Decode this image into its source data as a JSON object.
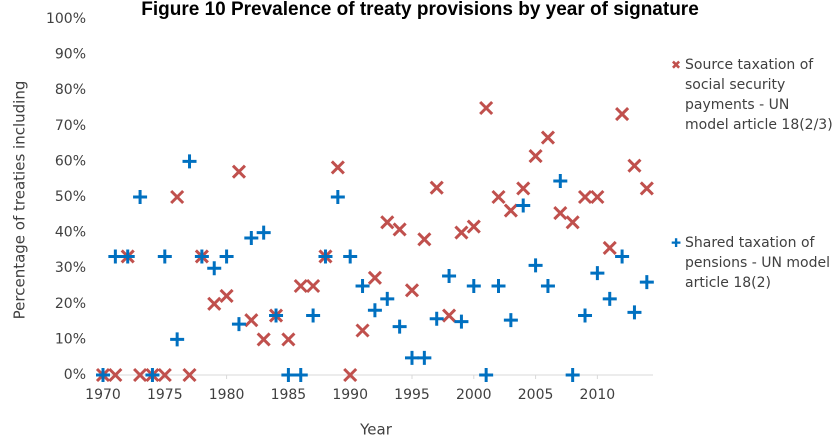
{
  "chart_data": {
    "type": "scatter",
    "title": "Figure 10 Prevalence of treaty provisions by year of signature",
    "x_label": "Year",
    "y_label": "Percentage of treaties including",
    "x": [
      1970,
      1971,
      1972,
      1973,
      1974,
      1975,
      1976,
      1977,
      1978,
      1979,
      1980,
      1981,
      1982,
      1983,
      1984,
      1985,
      1986,
      1987,
      1988,
      1989,
      1990,
      1991,
      1992,
      1993,
      1994,
      1995,
      1996,
      1997,
      1998,
      1999,
      2000,
      2001,
      2002,
      2003,
      2004,
      2005,
      2006,
      2007,
      2008,
      2009,
      2010,
      2011,
      2012,
      2013,
      2014
    ],
    "series": [
      {
        "name": "Source taxation of social security payments - UN model article 18(2/3)",
        "color": "#c0504d",
        "marker": "x",
        "values": [
          0,
          0,
          33.3,
          0,
          0,
          0,
          50,
          0,
          33.3,
          20,
          22.2,
          57.1,
          15.4,
          10,
          16.7,
          10,
          25,
          25,
          33.3,
          58.3,
          0,
          12.5,
          27.3,
          42.9,
          40.9,
          23.8,
          38.1,
          52.6,
          16.7,
          40,
          41.7,
          75,
          50,
          46.2,
          52.4,
          61.5,
          66.7,
          45.5,
          42.9,
          50,
          50,
          35.7,
          73.3,
          58.8,
          52.4
        ]
      },
      {
        "name": "Shared taxation of pensions - UN model article 18(2)",
        "color": "#0070c0",
        "marker": "+",
        "values": [
          0,
          33.3,
          33.3,
          50,
          0,
          33.3,
          10,
          60,
          33.3,
          30,
          33.3,
          14.3,
          38.5,
          40,
          16.7,
          0,
          0,
          16.7,
          33.3,
          50,
          33.3,
          25,
          18.2,
          21.4,
          13.6,
          4.8,
          4.8,
          15.8,
          27.8,
          15,
          25,
          0,
          25,
          15.4,
          47.6,
          30.8,
          25,
          54.5,
          0,
          16.7,
          28.6,
          21.4,
          33.3,
          17.6,
          26.1
        ]
      }
    ],
    "xlim": [
      1970,
      2014.5
    ],
    "ylim": [
      0,
      100
    ],
    "xticks": [
      1970,
      1975,
      1980,
      1985,
      1990,
      1995,
      2000,
      2005,
      2010
    ],
    "yticks": [
      {
        "value": 0,
        "label": "0%"
      },
      {
        "value": 10,
        "label": "10%"
      },
      {
        "value": 20,
        "label": "20%"
      },
      {
        "value": 30,
        "label": "30%"
      },
      {
        "value": 40,
        "label": "40%"
      },
      {
        "value": 50,
        "label": "50%"
      },
      {
        "value": 60,
        "label": "60%"
      },
      {
        "value": 70,
        "label": "70%"
      },
      {
        "value": 80,
        "label": "80%"
      },
      {
        "value": 90,
        "label": "90%"
      },
      {
        "value": 100,
        "label": "100%"
      }
    ],
    "grid": false
  }
}
